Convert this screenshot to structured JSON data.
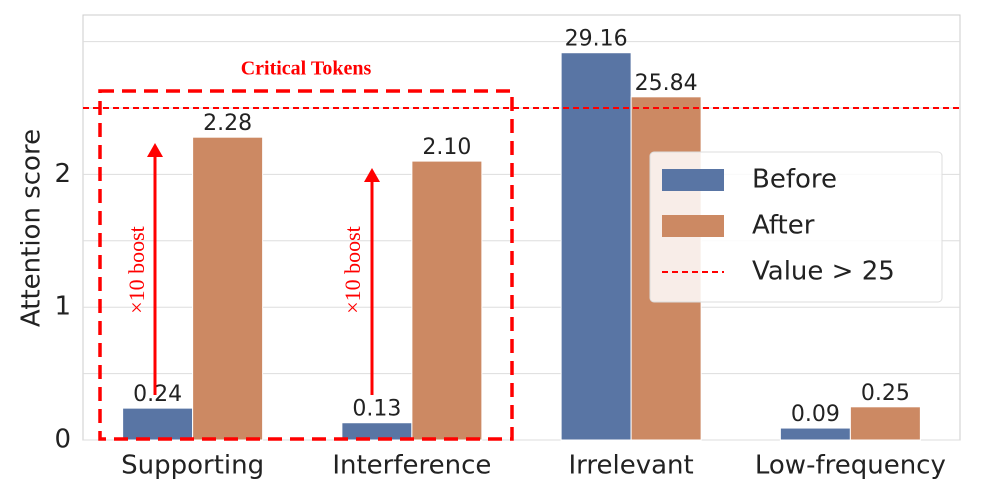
{
  "chart_data": {
    "type": "bar",
    "ylabel": "Attention score",
    "categories": [
      "Supporting",
      "Interference",
      "Irrelevant",
      "Low-frequency"
    ],
    "series": [
      {
        "name": "Before",
        "color": "#5975a4",
        "values": [
          0.24,
          0.13,
          29.16,
          0.09
        ],
        "value_labels": [
          "0.24",
          "0.13",
          "29.16",
          "0.09"
        ]
      },
      {
        "name": "After",
        "color": "#cc8963",
        "values": [
          2.28,
          2.1,
          25.84,
          0.25
        ],
        "value_labels": [
          "2.28",
          "2.10",
          "25.84",
          "0.25"
        ]
      }
    ],
    "ylim": [
      0,
      3.2
    ],
    "yticks": [
      0,
      1,
      2
    ],
    "grid_lines": [
      0.5,
      1.5,
      2.5,
      3
    ],
    "axis_break": {
      "from": 25,
      "drawn_at": 2.5,
      "factor": 0.1
    },
    "threshold": {
      "label": "Value > 25",
      "color": "#ff0000"
    },
    "legend": "right",
    "annotations": {
      "box_title": "Critical Tokens",
      "arrow_text": "×10 boost"
    }
  }
}
